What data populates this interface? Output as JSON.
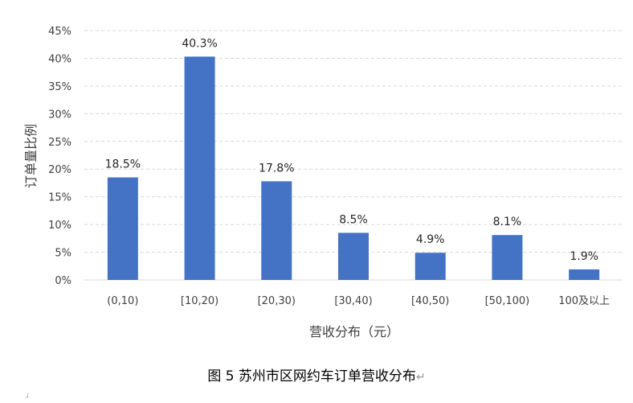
{
  "chart_data": {
    "type": "bar",
    "categories": [
      "(0,10)",
      "[10,20)",
      "[20,30)",
      "[30,40)",
      "[40,50)",
      "[50,100)",
      "100及以上"
    ],
    "values": [
      18.5,
      40.3,
      17.8,
      8.5,
      4.9,
      8.1,
      1.9
    ],
    "data_labels": [
      "18.5%",
      "40.3%",
      "17.8%",
      "8.5%",
      "4.9%",
      "8.1%",
      "1.9%"
    ],
    "ylim": [
      0,
      45
    ],
    "yticks": [
      0,
      5,
      10,
      15,
      20,
      25,
      30,
      35,
      40,
      45
    ],
    "ytick_labels": [
      "0%",
      "5%",
      "10%",
      "15%",
      "20%",
      "25%",
      "30%",
      "35%",
      "40%",
      "45%"
    ],
    "xlabel": "营收分布（元）",
    "ylabel": "订单量比例",
    "grid": true,
    "legend": "none",
    "bar_color": "#4472C4",
    "grid_color": "#D9D9D9"
  },
  "caption": {
    "text": "图 5 苏州市区网约车订单营收分布",
    "mark": "↵"
  }
}
